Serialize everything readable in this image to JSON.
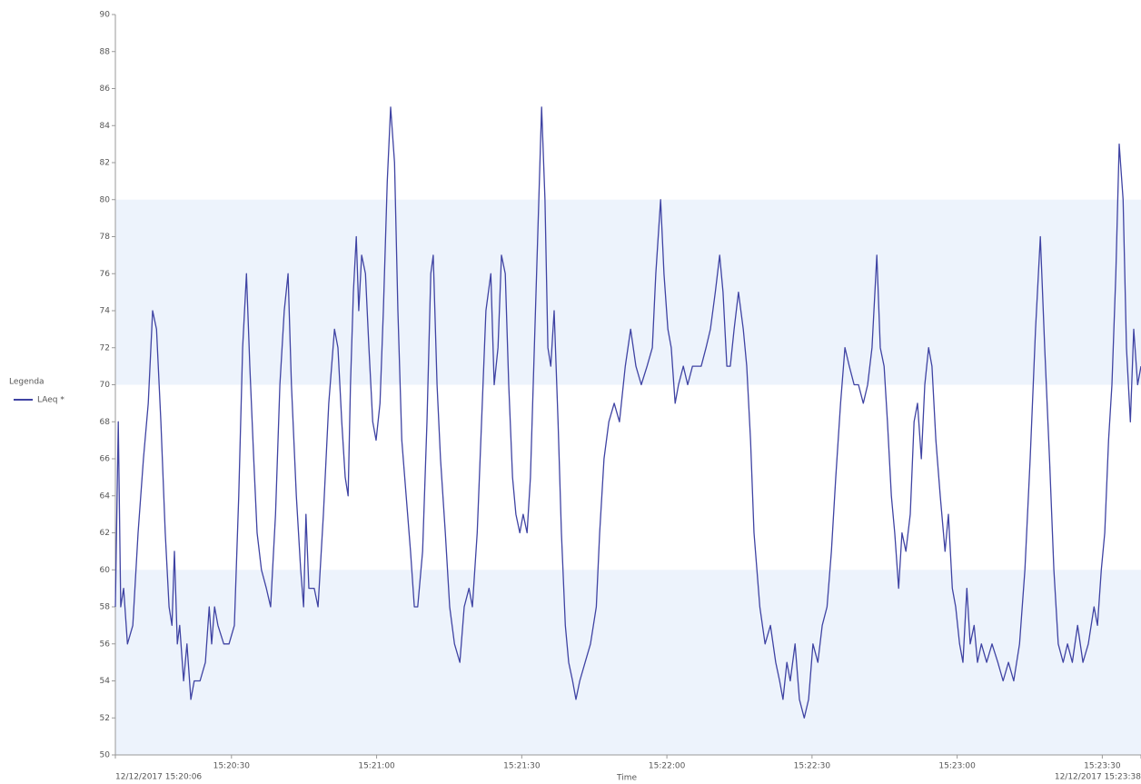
{
  "chart_data": {
    "type": "line",
    "x_title": "Time",
    "legend_title": "Legenda",
    "legend": "left",
    "xlim": [
      6,
      218
    ],
    "xticks": [
      {
        "value": 6,
        "label": "12/12/2017 15:20:06"
      },
      {
        "value": 30,
        "label": "15:20:30"
      },
      {
        "value": 60,
        "label": "15:21:00"
      },
      {
        "value": 90,
        "label": "15:21:30"
      },
      {
        "value": 120,
        "label": "15:22:00"
      },
      {
        "value": 150,
        "label": "15:22:30"
      },
      {
        "value": 180,
        "label": "15:23:00"
      },
      {
        "value": 210,
        "label": "15:23:30"
      },
      {
        "value": 218,
        "label": "12/12/2017 15:23:38"
      }
    ],
    "ylim": [
      50,
      90
    ],
    "yticks": [
      50,
      52,
      54,
      56,
      58,
      60,
      62,
      64,
      66,
      68,
      70,
      72,
      74,
      76,
      78,
      80,
      82,
      84,
      86,
      88,
      90
    ],
    "bands": [
      {
        "from": 50,
        "to": 60
      },
      {
        "from": 70,
        "to": 80
      }
    ],
    "band_color": "#edf3fc",
    "x": [
      6.0,
      6.6,
      7.1,
      7.7,
      8.5,
      9.6,
      10.7,
      11.8,
      12.8,
      13.7,
      14.5,
      15.4,
      16.3,
      17.1,
      17.7,
      18.2,
      18.8,
      19.3,
      20.1,
      20.8,
      21.6,
      22.3,
      23.5,
      24.6,
      25.4,
      25.9,
      26.5,
      27.2,
      28.4,
      29.5,
      30.6,
      31.5,
      32.3,
      33.1,
      33.8,
      34.6,
      35.3,
      36.2,
      37.2,
      38.1,
      39.1,
      40.0,
      40.9,
      41.7,
      42.4,
      43.4,
      44.3,
      44.9,
      45.4,
      46.0,
      47.1,
      47.9,
      49.0,
      50.1,
      51.3,
      52.0,
      52.8,
      53.5,
      54.1,
      54.6,
      55.2,
      55.8,
      56.3,
      56.9,
      57.7,
      58.4,
      59.2,
      59.9,
      60.7,
      61.4,
      62.2,
      62.9,
      63.7,
      64.4,
      65.2,
      66.1,
      67.0,
      67.8,
      68.5,
      69.5,
      70.4,
      71.2,
      71.7,
      72.5,
      73.2,
      74.2,
      75.1,
      76.1,
      77.2,
      78.1,
      79.1,
      79.8,
      80.8,
      81.7,
      82.6,
      83.6,
      84.3,
      85.1,
      85.8,
      86.6,
      87.3,
      88.1,
      88.8,
      89.6,
      90.3,
      91.1,
      91.8,
      92.6,
      93.3,
      94.1,
      94.8,
      95.4,
      96.0,
      96.7,
      97.5,
      98.2,
      99.0,
      99.7,
      100.5,
      101.2,
      102.0,
      103.1,
      104.2,
      105.4,
      106.1,
      107.0,
      108.0,
      109.1,
      110.2,
      111.4,
      112.5,
      113.6,
      114.7,
      115.9,
      117.0,
      117.7,
      118.7,
      119.4,
      120.2,
      120.9,
      121.7,
      122.4,
      123.4,
      124.3,
      125.3,
      126.2,
      127.1,
      128.1,
      129.0,
      130.0,
      130.9,
      131.6,
      132.4,
      133.1,
      133.9,
      134.8,
      135.8,
      136.5,
      137.3,
      138.0,
      139.2,
      140.3,
      141.4,
      142.5,
      143.3,
      144.0,
      144.8,
      145.5,
      146.5,
      147.4,
      148.4,
      149.3,
      150.2,
      151.2,
      152.1,
      153.1,
      154.0,
      154.9,
      155.9,
      156.8,
      157.7,
      158.7,
      159.6,
      160.6,
      161.5,
      162.4,
      163.4,
      164.1,
      164.9,
      165.6,
      166.4,
      167.1,
      167.9,
      168.6,
      169.4,
      170.3,
      171.1,
      171.8,
      172.6,
      173.3,
      174.1,
      174.8,
      175.6,
      176.5,
      177.5,
      178.2,
      179.0,
      179.7,
      180.5,
      181.2,
      182.0,
      182.7,
      183.5,
      184.2,
      185.0,
      186.1,
      187.2,
      188.4,
      189.5,
      190.6,
      191.7,
      192.9,
      194.0,
      195.1,
      196.2,
      197.2,
      198.1,
      199.1,
      200.0,
      200.9,
      201.9,
      202.8,
      203.8,
      204.9,
      206.0,
      207.1,
      208.3,
      209.0,
      209.8,
      210.5,
      211.3,
      212.0,
      212.8,
      213.5,
      214.3,
      215.0,
      215.8,
      216.5,
      217.3,
      218.0
    ],
    "series": [
      {
        "name": "LAeq *",
        "color": "#3f43a3",
        "values": [
          58,
          68,
          58,
          59,
          56,
          57,
          62,
          66,
          69,
          74,
          73,
          68,
          62,
          58,
          57,
          61,
          56,
          57,
          54,
          56,
          53,
          54,
          54,
          55,
          58,
          56,
          58,
          57,
          56,
          56,
          57,
          64,
          72,
          76,
          71,
          66,
          62,
          60,
          59,
          58,
          63,
          70,
          74,
          76,
          70,
          64,
          60,
          58,
          63,
          59,
          59,
          58,
          63,
          69,
          73,
          72,
          68,
          65,
          64,
          70,
          75,
          78,
          74,
          77,
          76,
          72,
          68,
          67,
          69,
          74,
          81,
          85,
          82,
          74,
          67,
          64,
          61,
          58,
          58,
          61,
          68,
          76,
          77,
          70,
          66,
          62,
          58,
          56,
          55,
          58,
          59,
          58,
          62,
          68,
          74,
          76,
          70,
          72,
          77,
          76,
          70,
          65,
          63,
          62,
          63,
          62,
          65,
          72,
          78,
          85,
          80,
          72,
          71,
          74,
          68,
          62,
          57,
          55,
          54,
          53,
          54,
          55,
          56,
          58,
          62,
          66,
          68,
          69,
          68,
          71,
          73,
          71,
          70,
          71,
          72,
          76,
          80,
          76,
          73,
          72,
          69,
          70,
          71,
          70,
          71,
          71,
          71,
          72,
          73,
          75,
          77,
          75,
          71,
          71,
          73,
          75,
          73,
          71,
          67,
          62,
          58,
          56,
          57,
          55,
          54,
          53,
          55,
          54,
          56,
          53,
          52,
          53,
          56,
          55,
          57,
          58,
          61,
          65,
          69,
          72,
          71,
          70,
          70,
          69,
          70,
          72,
          77,
          72,
          71,
          68,
          64,
          62,
          59,
          62,
          61,
          63,
          68,
          69,
          66,
          70,
          72,
          71,
          67,
          64,
          61,
          63,
          59,
          58,
          56,
          55,
          59,
          56,
          57,
          55,
          56,
          55,
          56,
          55,
          54,
          55,
          54,
          56,
          60,
          66,
          73,
          78,
          72,
          66,
          60,
          56,
          55,
          56,
          55,
          57,
          55,
          56,
          58,
          57,
          60,
          62,
          67,
          70,
          76,
          83,
          80,
          72,
          68,
          73,
          70,
          71
        ]
      }
    ]
  }
}
